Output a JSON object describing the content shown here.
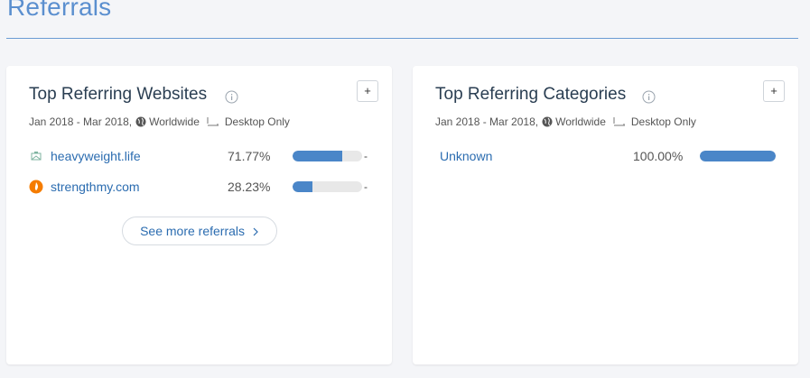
{
  "section": {
    "title": "Referrals"
  },
  "colors": {
    "accent": "#5b8fcf",
    "bar_fill": "#4a86c8",
    "bar_track": "#e8e8e8",
    "link": "#2b6cb0",
    "icon_orange": "#f57c00"
  },
  "websites_card": {
    "title": "Top Referring Websites",
    "info_icon": "info-icon",
    "plus_label": "+",
    "meta": {
      "date_range": "Jan 2018 - Mar 2018,",
      "region": "Worldwide",
      "device": "Desktop Only"
    },
    "rows": [
      {
        "name": "heavyweight.life",
        "percent": "71.77%",
        "share": 0.7177,
        "icon": "site-favicon-icon"
      },
      {
        "name": "strengthmy.com",
        "percent": "28.23%",
        "share": 0.2823,
        "icon": "flame-icon"
      }
    ],
    "row_trailing": "-",
    "see_more_label": "See more referrals"
  },
  "categories_card": {
    "title": "Top Referring Categories",
    "info_icon": "info-icon",
    "plus_label": "+",
    "meta": {
      "date_range": "Jan 2018 - Mar 2018,",
      "region": "Worldwide",
      "device": "Desktop Only"
    },
    "rows": [
      {
        "name": "Unknown",
        "percent": "100.00%",
        "share": 1.0
      }
    ]
  }
}
